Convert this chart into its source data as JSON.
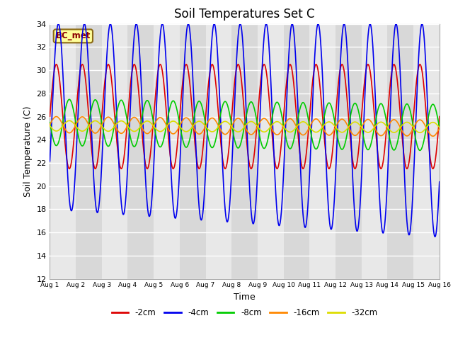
{
  "title": "Soil Temperatures Set C",
  "xlabel": "Time",
  "ylabel": "Soil Temperature (C)",
  "ylim": [
    12,
    34
  ],
  "xlim": [
    0,
    15
  ],
  "annotation": "BC_met",
  "legend_labels": [
    "-2cm",
    "-4cm",
    "-8cm",
    "-16cm",
    "-32cm"
  ],
  "legend_colors": [
    "#dd0000",
    "#0000ee",
    "#00cc00",
    "#ff8800",
    "#dddd00"
  ],
  "background_color": "#ffffff",
  "plot_bg_color": "#e8e8e8",
  "grid_color": "#ffffff",
  "params": [
    {
      "mean": 26.0,
      "amp": 4.5,
      "phase": 0.0,
      "amp_trend": 0.0,
      "mean_trend": 0.0,
      "color": "#dd0000",
      "label": "-2cm"
    },
    {
      "mean": 26.0,
      "amp": 8.0,
      "phase": 0.08,
      "amp_trend": 0.08,
      "mean_trend": -0.08,
      "color": "#0000ee",
      "label": "-4cm"
    },
    {
      "mean": 25.5,
      "amp": 2.0,
      "phase": 0.5,
      "amp_trend": 0.0,
      "mean_trend": -0.03,
      "color": "#00cc00",
      "label": "-8cm"
    },
    {
      "mean": 25.3,
      "amp": 0.7,
      "phase": 1.0,
      "amp_trend": 0.0,
      "mean_trend": -0.02,
      "color": "#ff8800",
      "label": "-16cm"
    },
    {
      "mean": 25.2,
      "amp": 0.45,
      "phase": 1.5,
      "amp_trend": 0.0,
      "mean_trend": -0.01,
      "color": "#dddd00",
      "label": "-32cm"
    }
  ],
  "xtick_labels": [
    "Aug 1",
    "Aug 2",
    "Aug 3",
    "Aug 4",
    "Aug 5",
    "Aug 6",
    "Aug 7",
    "Aug 8",
    "Aug 9",
    "Aug 10",
    "Aug 11",
    "Aug 12",
    "Aug 13",
    "Aug 14",
    "Aug 15",
    "Aug 16"
  ],
  "ytick_values": [
    12,
    14,
    16,
    18,
    20,
    22,
    24,
    26,
    28,
    30,
    32,
    34
  ],
  "band_colors": [
    "#e8e8e8",
    "#d8d8d8"
  ]
}
